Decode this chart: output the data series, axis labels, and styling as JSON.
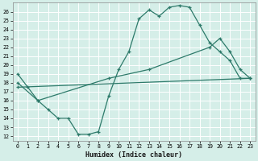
{
  "xlabel": "Humidex (Indice chaleur)",
  "bg_color": "#d5eee8",
  "grid_color": "#ffffff",
  "line_color": "#2d7a6a",
  "xlim": [
    -0.5,
    23.5
  ],
  "ylim": [
    11.5,
    27.0
  ],
  "xticks": [
    0,
    1,
    2,
    3,
    4,
    5,
    6,
    7,
    8,
    9,
    10,
    11,
    12,
    13,
    14,
    15,
    16,
    17,
    18,
    19,
    20,
    21,
    22,
    23
  ],
  "yticks": [
    12,
    13,
    14,
    15,
    16,
    17,
    18,
    19,
    20,
    21,
    22,
    23,
    24,
    25,
    26
  ],
  "line1_x": [
    0,
    1,
    2,
    3,
    4,
    5,
    6,
    7,
    8,
    9,
    10,
    11,
    12,
    13,
    14,
    15,
    16,
    17,
    18,
    19,
    20,
    21,
    22,
    23
  ],
  "line1_y": [
    19.0,
    17.5,
    16.0,
    15.0,
    14.0,
    14.0,
    12.2,
    12.2,
    12.5,
    16.5,
    19.5,
    21.5,
    25.2,
    26.2,
    25.5,
    26.5,
    26.7,
    26.5,
    24.5,
    22.5,
    21.5,
    20.5,
    18.5,
    18.5
  ],
  "line2_x": [
    0,
    2,
    9,
    13,
    19,
    20,
    21,
    22,
    23
  ],
  "line2_y": [
    18.0,
    16.0,
    18.5,
    19.5,
    22.0,
    23.0,
    21.5,
    19.5,
    18.5
  ],
  "line3_x": [
    0,
    23
  ],
  "line3_y": [
    17.5,
    18.5
  ]
}
